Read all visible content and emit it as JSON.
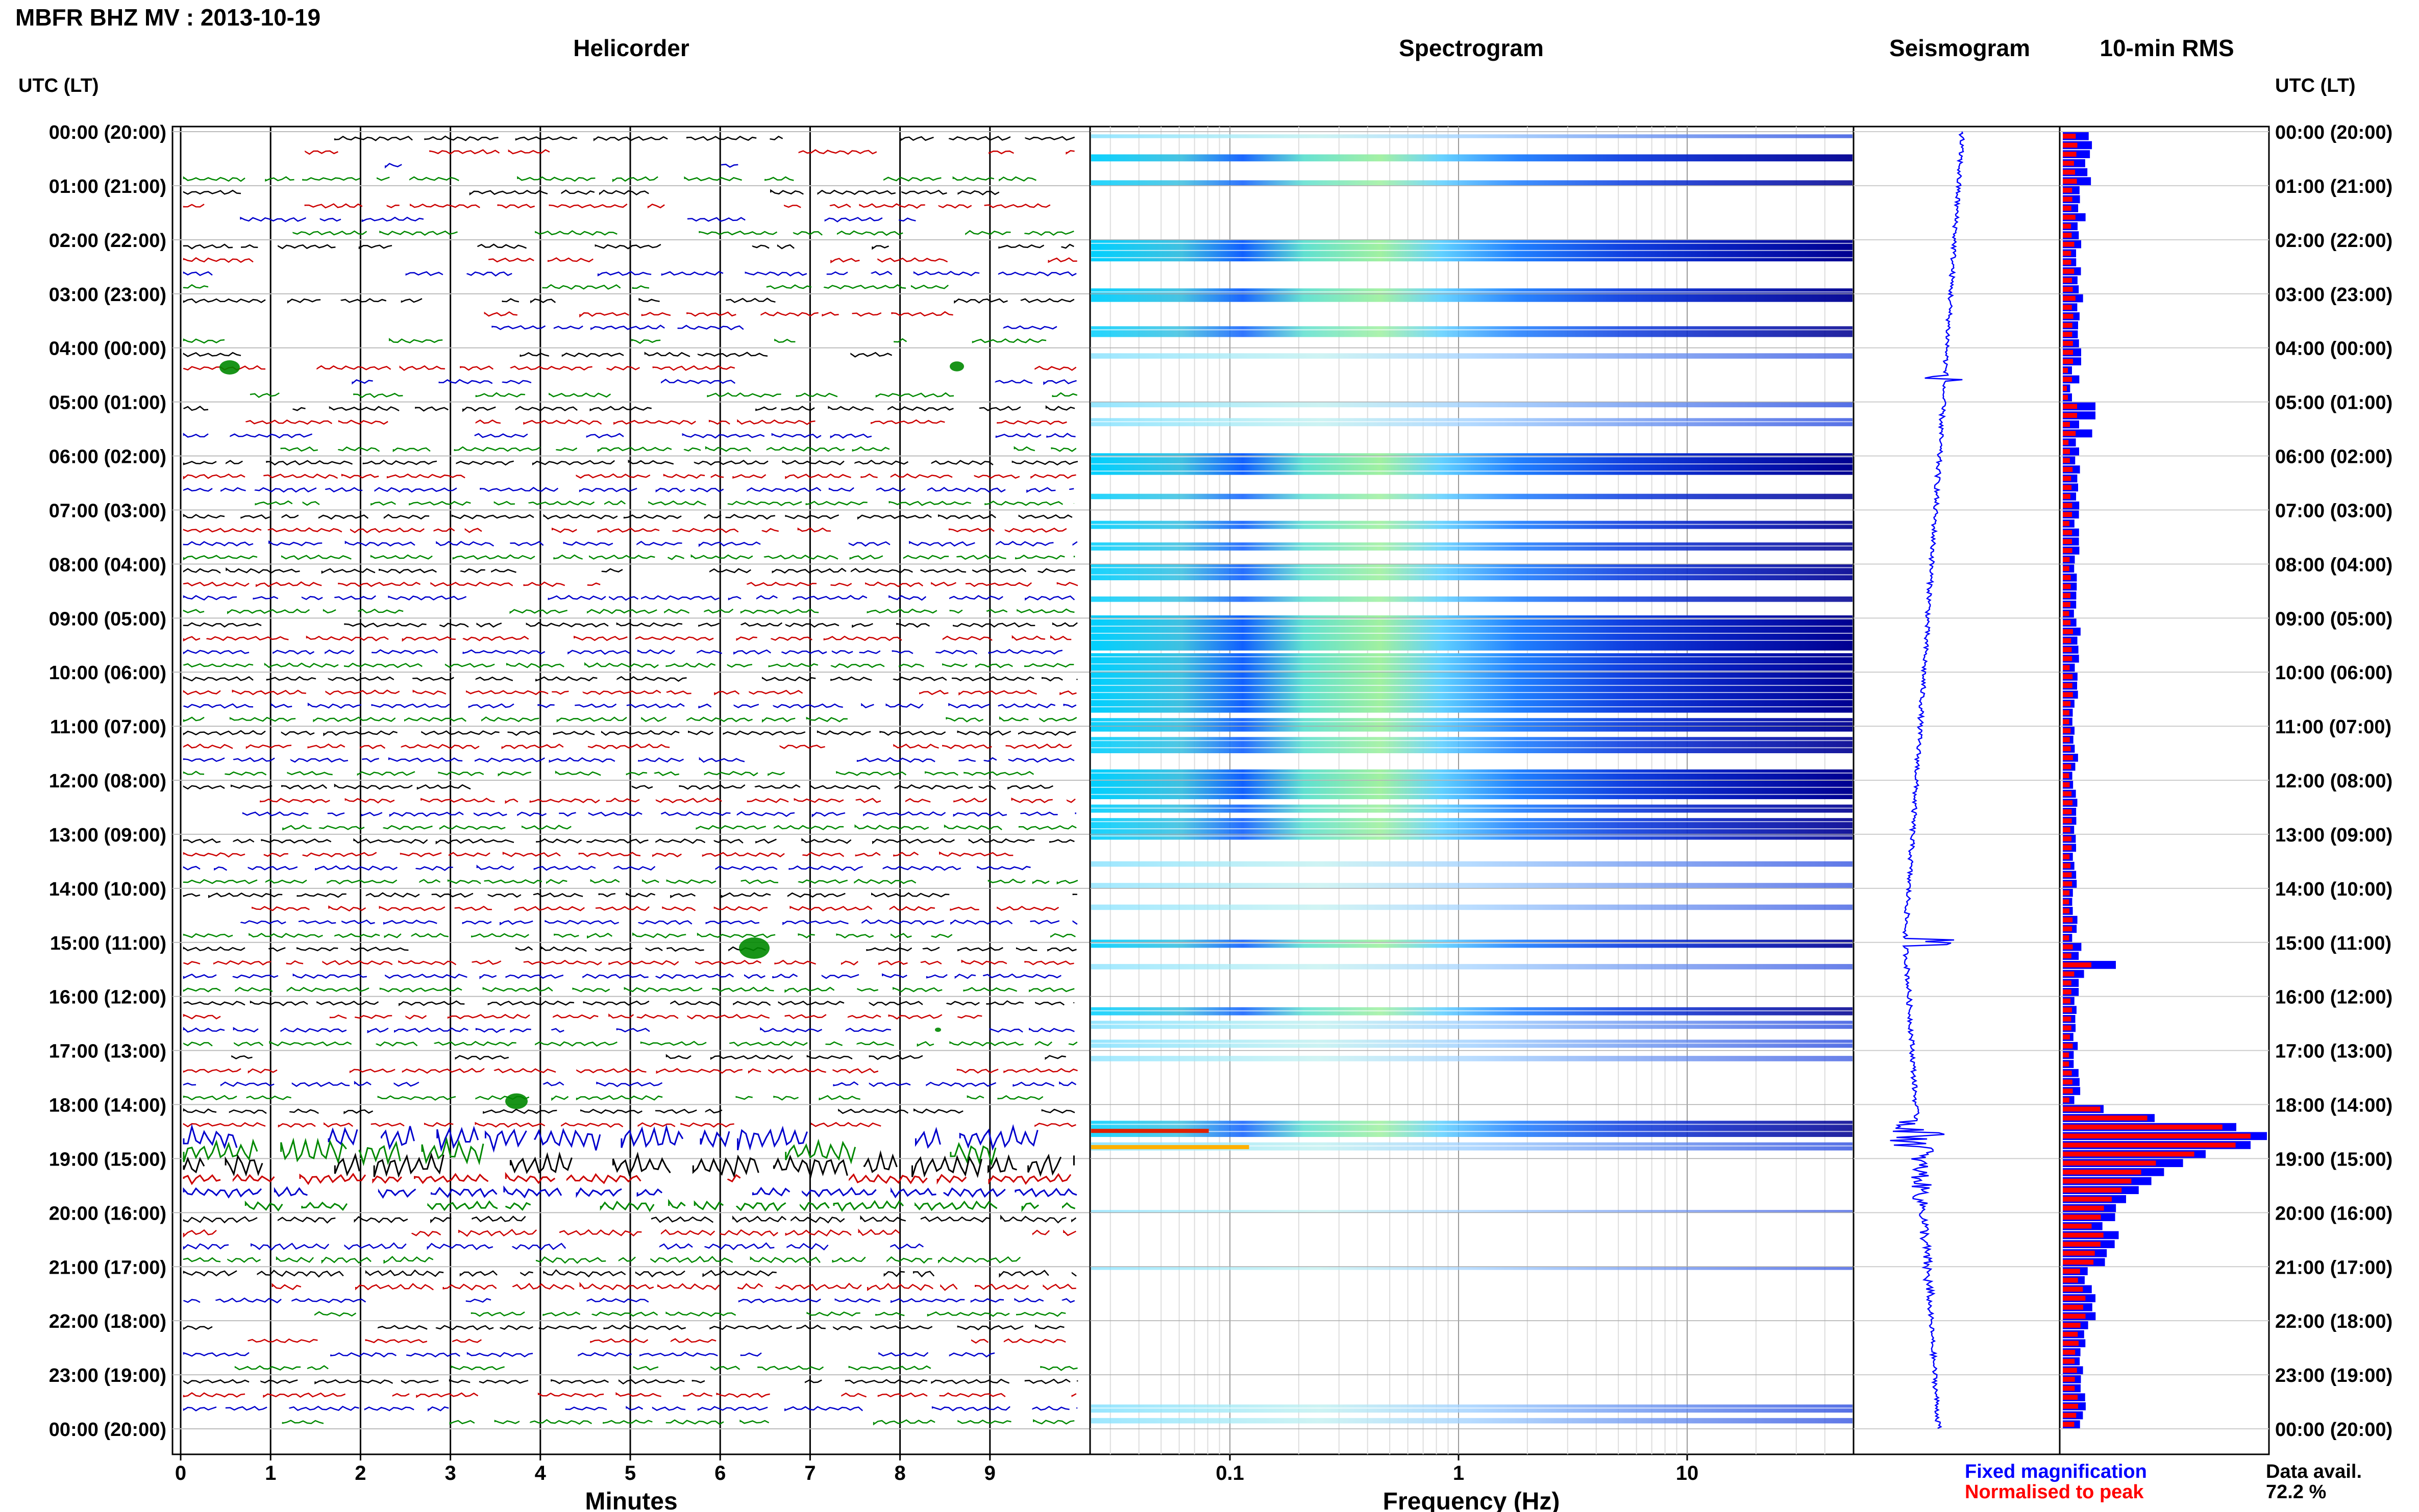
{
  "header": {
    "title": "MBFR BHZ MV : 2013-10-19",
    "tz_label_left": "UTC (LT)",
    "tz_label_right": "UTC (LT)"
  },
  "panels": {
    "helicorder": "Helicorder",
    "spectrogram": "Spectrogram",
    "seismogram": "Seismogram",
    "rms": "10-min RMS"
  },
  "time_labels": [
    "00:00 (20:00)",
    "01:00 (21:00)",
    "02:00 (22:00)",
    "03:00 (23:00)",
    "04:00 (00:00)",
    "05:00 (01:00)",
    "06:00 (02:00)",
    "07:00 (03:00)",
    "08:00 (04:00)",
    "09:00 (05:00)",
    "10:00 (06:00)",
    "11:00 (07:00)",
    "12:00 (08:00)",
    "13:00 (09:00)",
    "14:00 (10:00)",
    "15:00 (11:00)",
    "16:00 (12:00)",
    "17:00 (13:00)",
    "18:00 (14:00)",
    "19:00 (15:00)",
    "20:00 (16:00)",
    "21:00 (17:00)",
    "22:00 (18:00)",
    "23:00 (19:00)",
    "00:00 (20:00)"
  ],
  "helicorder_axis": {
    "ticks": [
      "0",
      "1",
      "2",
      "3",
      "4",
      "5",
      "6",
      "7",
      "8",
      "9"
    ],
    "xlabel": "Minutes"
  },
  "spectrogram_axis": {
    "ticks": [
      "0.1",
      "1",
      "10"
    ],
    "xlabel": "Frequency (Hz)"
  },
  "legend": {
    "fixed": "Fixed magnification",
    "normalised": "Normalised to peak",
    "fixed_color": "#0000ff",
    "normalised_color": "#ff0000"
  },
  "availability": {
    "label": "Data avail.",
    "value": "72.2 %"
  },
  "chart_data": {
    "type": "bar",
    "title": "10-min RMS",
    "categories_hours_utc": [
      0,
      1,
      2,
      3,
      4,
      5,
      6,
      7,
      8,
      9,
      10,
      11,
      12,
      13,
      14,
      15,
      16,
      17,
      18,
      19,
      20,
      21,
      22,
      23
    ],
    "series": [
      {
        "name": "Fixed magnification",
        "values": [
          0.12,
          0.09,
          0.08,
          0.08,
          0.09,
          0.16,
          0.07,
          0.07,
          0.07,
          0.07,
          0.06,
          0.06,
          0.06,
          0.06,
          0.06,
          0.26,
          0.06,
          0.07,
          1.0,
          0.62,
          0.22,
          0.13,
          0.1,
          0.09
        ]
      },
      {
        "name": "Normalised to peak",
        "values": [
          0.06,
          0.05,
          0.05,
          0.05,
          0.05,
          0.07,
          0.04,
          0.04,
          0.04,
          0.04,
          0.04,
          0.04,
          0.04,
          0.04,
          0.04,
          0.14,
          0.04,
          0.04,
          0.92,
          0.48,
          0.16,
          0.09,
          0.07,
          0.06
        ]
      }
    ],
    "helicorder_trace_colors": [
      "#000000",
      "#cc0000",
      "#0000cc",
      "#008800"
    ],
    "spectrogram_colormap": "jet",
    "spectrogram_xlim_hz": [
      0.02,
      50
    ],
    "spectrogram_xscale": "log",
    "helicorder_xlim_minutes": [
      0,
      10
    ],
    "grid": true
  }
}
